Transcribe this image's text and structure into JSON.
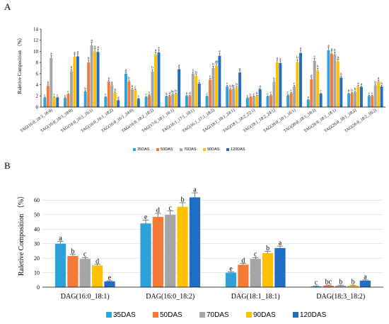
{
  "colors": {
    "35DAS": "#2ea3d9",
    "50DAS": "#f47a36",
    "70DAS": "#a5a5a5",
    "90DAS": "#ffc000",
    "120DAS": "#1f6dc4"
  },
  "chart_data": [
    {
      "type": "bar",
      "panel_label": "A",
      "ylabel": "Raletive Composition （%）",
      "ylim": [
        0,
        14
      ],
      "yticks": [
        0,
        2,
        4,
        6,
        8,
        10,
        12,
        14
      ],
      "grid": false,
      "legend": "bottom-center",
      "categories": [
        "TAG(16:0_18:3_16:0)",
        "TAG(16:0_18:3_18:0)",
        "TAG(16:0_16:1_16:1)",
        "TAG(16:0_16:1_18:2)",
        "TAG(16:0_16:1_24:0)",
        "TAG(16:0_18:2_18:2)",
        "TAG(17:0_18:1_16:1)",
        "TAG(16:1_17:1_18:1)",
        "TAG(16:1_17:1_18:2)",
        "TAG(18:1_18:1_24:1)",
        "TAG(18:1_18:2_22:1)",
        "TAG(18:1_18:2_24:1)",
        "TAG(20:0_18:1_16:1)",
        "TAG(20:0_18:1_18:2)",
        "TAG(26:0_18:1_18:1)",
        "TAG(26:0_18:1_18:2)",
        "TAG(26:0_18:2_18:2)"
      ],
      "series": [
        {
          "name": "35DAS",
          "values": [
            1.7,
            1.6,
            2.8,
            1.8,
            6.0,
            1.8,
            1.9,
            2.0,
            1.9,
            3.7,
            1.6,
            1.9,
            2.1,
            1.3,
            10.2,
            2.4,
            2.0
          ],
          "labels": [
            "c",
            "c",
            "b",
            "c",
            "a",
            "c",
            "d",
            "e",
            "c",
            "c",
            "c",
            "c",
            "c",
            "e",
            "a",
            "b",
            "c"
          ]
        },
        {
          "name": "50DAS",
          "values": [
            3.8,
            2.3,
            8.0,
            4.6,
            4.6,
            2.1,
            2.0,
            2.0,
            4.9,
            3.2,
            1.8,
            2.1,
            2.5,
            5.0,
            9.6,
            2.5,
            2.0
          ],
          "labels": [
            "b",
            "c",
            "b",
            "a",
            "b",
            "c",
            "d",
            "d",
            "c",
            "b",
            "c",
            "c",
            "c",
            "d",
            "a",
            "b",
            "c"
          ]
        },
        {
          "name": "70DAS",
          "values": [
            8.8,
            6.4,
            11.1,
            3.9,
            3.2,
            6.4,
            2.3,
            6.0,
            7.0,
            3.3,
            1.9,
            4.5,
            3.7,
            8.3,
            9.4,
            2.7,
            3.9
          ],
          "labels": [
            "a",
            "b",
            "a",
            "a",
            "b",
            "b",
            "bc",
            "c",
            "b",
            "bc",
            "c",
            "b",
            "c",
            "c",
            "b",
            "b",
            "b"
          ]
        },
        {
          "name": "90DAS",
          "values": [
            1.8,
            9.0,
            10.0,
            2.6,
            3.1,
            9.4,
            2.4,
            5.6,
            7.4,
            3.5,
            2.0,
            8.0,
            8.1,
            6.6,
            8.2,
            3.7,
            4.6
          ],
          "labels": [
            "c",
            "a",
            "a",
            "b",
            "c",
            "a",
            "b",
            "b",
            "ab",
            "b",
            "b",
            "a",
            "b",
            "b",
            "a",
            "a",
            "a"
          ]
        },
        {
          "name": "120DAS",
          "values": [
            1.7,
            9.1,
            9.9,
            1.2,
            1.5,
            9.8,
            6.8,
            4.2,
            9.2,
            6.2,
            3.2,
            7.9,
            9.7,
            2.4,
            5.3,
            3.6,
            3.7
          ],
          "labels": [
            "c",
            "a",
            "a",
            "d",
            "c",
            "a",
            "a",
            "c",
            "a",
            "a",
            "a",
            "a",
            "a",
            "c",
            "b",
            "a",
            "b"
          ]
        }
      ]
    },
    {
      "type": "bar",
      "panel_label": "B",
      "ylabel": "Raletive Composition （%）",
      "ylim": [
        0,
        70
      ],
      "yticks": [
        0,
        10,
        20,
        30,
        40,
        50,
        60
      ],
      "grid": true,
      "legend": "bottom-center",
      "categories": [
        "DAG(16:0_18:1)",
        "DAG(16:0_18:2)",
        "DAG(18:1_18:1)",
        "DAG(18:3_18:2)"
      ],
      "series": [
        {
          "name": "35DAS",
          "values": [
            30.0,
            44.0,
            10.0,
            0.5
          ],
          "labels": [
            "a",
            "e",
            "e",
            "c"
          ]
        },
        {
          "name": "50DAS",
          "values": [
            21.5,
            48.5,
            15.5,
            1.0
          ],
          "labels": [
            "b",
            "d",
            "d",
            "bc"
          ]
        },
        {
          "name": "70DAS",
          "values": [
            19.5,
            50.0,
            19.5,
            1.0
          ],
          "labels": [
            "c",
            "c",
            "c",
            "b"
          ]
        },
        {
          "name": "90DAS",
          "values": [
            15.0,
            55.5,
            23.5,
            1.0
          ],
          "labels": [
            "d",
            "b",
            "b",
            "b"
          ]
        },
        {
          "name": "120DAS",
          "values": [
            4.0,
            62.0,
            27.0,
            4.5
          ],
          "labels": [
            "e",
            "a",
            "a",
            "a"
          ]
        }
      ]
    }
  ]
}
